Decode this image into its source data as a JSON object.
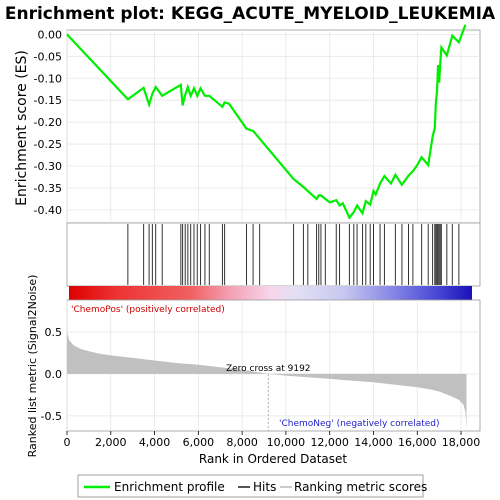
{
  "chart_data": [
    {
      "type": "line",
      "title": "Enrichment plot: KEGG_ACUTE_MYELOID_LEUKEMIA",
      "ylabel": "Enrichment score (ES)",
      "ylim": [
        -0.43,
        0.01
      ],
      "yticks": [
        "0.00",
        "-0.05",
        "-0.10",
        "-0.15",
        "-0.20",
        "-0.25",
        "-0.30",
        "-0.35",
        "-0.40"
      ],
      "ytick_values": [
        0.0,
        -0.05,
        -0.1,
        -0.15,
        -0.2,
        -0.25,
        -0.3,
        -0.35,
        -0.4
      ],
      "grid": true,
      "color": "#00ee00",
      "series": [
        {
          "name": "Enrichment profile",
          "x": [
            0,
            2780,
            3500,
            3750,
            3900,
            4050,
            4350,
            5200,
            5280,
            5400,
            5520,
            5650,
            5800,
            5950,
            6100,
            6300,
            6500,
            7100,
            7200,
            7400,
            8200,
            8500,
            10350,
            10600,
            10800,
            11400,
            11500,
            11600,
            11800,
            12000,
            12300,
            12450,
            12600,
            12900,
            13100,
            13250,
            13500,
            13650,
            13850,
            14000,
            14100,
            14300,
            14500,
            14800,
            15000,
            15300,
            15600,
            15800,
            16000,
            16200,
            16500,
            16700,
            16800,
            16850,
            16900,
            16950,
            17000,
            17050,
            17100,
            17350,
            17600,
            17900,
            18200
          ],
          "y": [
            0.0,
            -0.148,
            -0.122,
            -0.16,
            -0.135,
            -0.12,
            -0.14,
            -0.115,
            -0.162,
            -0.138,
            -0.12,
            -0.14,
            -0.123,
            -0.14,
            -0.123,
            -0.14,
            -0.14,
            -0.165,
            -0.155,
            -0.158,
            -0.215,
            -0.22,
            -0.33,
            -0.34,
            -0.348,
            -0.375,
            -0.367,
            -0.367,
            -0.375,
            -0.383,
            -0.378,
            -0.39,
            -0.385,
            -0.418,
            -0.405,
            -0.39,
            -0.408,
            -0.38,
            -0.388,
            -0.357,
            -0.365,
            -0.34,
            -0.323,
            -0.34,
            -0.32,
            -0.343,
            -0.322,
            -0.312,
            -0.298,
            -0.28,
            -0.298,
            -0.233,
            -0.213,
            -0.155,
            -0.13,
            -0.07,
            -0.11,
            -0.065,
            -0.03,
            -0.048,
            -0.003,
            -0.018,
            0.022
          ]
        }
      ]
    },
    {
      "type": "scatter",
      "name": "Hits",
      "hits": [
        2780,
        3500,
        3750,
        3900,
        4050,
        4350,
        5200,
        5280,
        5400,
        5520,
        5650,
        5800,
        5950,
        6100,
        6300,
        6500,
        7100,
        7200,
        8200,
        8500,
        8800,
        10350,
        10800,
        11000,
        11400,
        11500,
        11600,
        11800,
        12300,
        12450,
        12900,
        13100,
        13250,
        13500,
        13650,
        13850,
        14000,
        14300,
        14500,
        15000,
        15300,
        15600,
        15800,
        16200,
        16500,
        16700,
        16800,
        16850,
        16900,
        16950,
        17000,
        17050,
        17100,
        17350,
        17600,
        17900
      ]
    },
    {
      "type": "area",
      "name": "Ranking metric scores",
      "ylabel": "Ranked list metric (Signal2Noise)",
      "xlabel": "Rank in Ordered Dataset",
      "xlim": [
        0,
        18500
      ],
      "xticks": [
        "0",
        "2,000",
        "4,000",
        "6,000",
        "8,000",
        "10,000",
        "12,000",
        "14,000",
        "16,000",
        "18,000"
      ],
      "xtick_values": [
        0,
        2000,
        4000,
        6000,
        8000,
        10000,
        12000,
        14000,
        16000,
        18000
      ],
      "ylim": [
        -0.68,
        0.88
      ],
      "yticks": [
        "0.5",
        "0.0",
        "-0.5"
      ],
      "ytick_values": [
        0.5,
        0.0,
        -0.5
      ],
      "x": [
        0,
        100,
        300,
        600,
        1000,
        1500,
        2000,
        3000,
        4000,
        5000,
        6000,
        7000,
        8000,
        9192,
        10000,
        11000,
        12000,
        13000,
        14000,
        15000,
        16000,
        16500,
        17000,
        17500,
        17900,
        18100,
        18200,
        18250
      ],
      "values": [
        0.5,
        0.4,
        0.34,
        0.3,
        0.27,
        0.24,
        0.22,
        0.19,
        0.16,
        0.13,
        0.11,
        0.08,
        0.05,
        0.0,
        -0.02,
        -0.04,
        -0.06,
        -0.08,
        -0.1,
        -0.13,
        -0.16,
        -0.18,
        -0.21,
        -0.26,
        -0.31,
        -0.36,
        -0.45,
        -0.65
      ],
      "annotations": {
        "zero_cross": "Zero cross at 9192",
        "pos_label": "'ChemoPos' (positively correlated)",
        "neg_label": "'ChemoNeg' (negatively correlated)"
      }
    }
  ],
  "legend": {
    "items": [
      {
        "label": "Enrichment profile",
        "color": "#00ee00"
      },
      {
        "label": "Hits",
        "color": "#555555"
      },
      {
        "label": "Ranking metric scores",
        "color": "#cccccc"
      }
    ]
  }
}
